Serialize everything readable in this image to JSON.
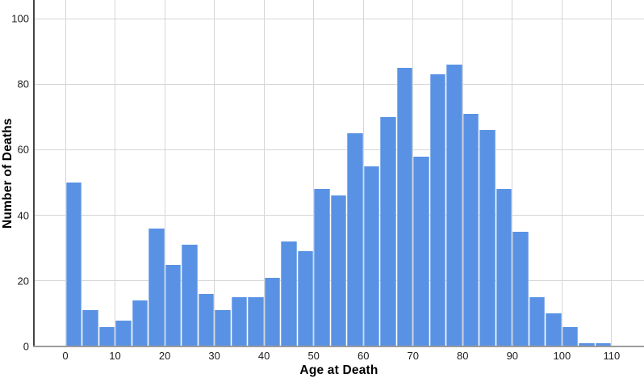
{
  "chart_data": {
    "type": "bar",
    "subtype": "histogram",
    "title": "",
    "xlabel": "Age at Death",
    "ylabel": "Number of Deaths",
    "x_ticks": [
      0,
      10,
      20,
      30,
      40,
      50,
      60,
      70,
      80,
      90,
      100,
      110
    ],
    "y_ticks": [
      0,
      20,
      40,
      60,
      80,
      100
    ],
    "xlim": [
      -6.34,
      116.52
    ],
    "ylim": [
      0,
      105.67
    ],
    "bin_start": 0,
    "bin_width": 3.3333,
    "values": [
      50,
      11,
      6,
      8,
      14,
      36,
      25,
      31,
      16,
      11,
      15,
      15,
      21,
      32,
      29,
      48,
      46,
      65,
      55,
      70,
      85,
      58,
      83,
      86,
      71,
      66,
      48,
      35,
      15,
      10,
      6,
      1,
      1
    ],
    "grid": true,
    "legend": false,
    "colors": {
      "bar_fill": "#5992e4",
      "bar_separator": "rgba(255,255,255,0.6)",
      "gridline": "#d6d6d6",
      "y_axis_line": "#454545",
      "x_axis_line": "#9b9b9b",
      "tick_text": "#1c1c1c",
      "axis_title_text": "#000000",
      "background": "#ffffff"
    }
  }
}
